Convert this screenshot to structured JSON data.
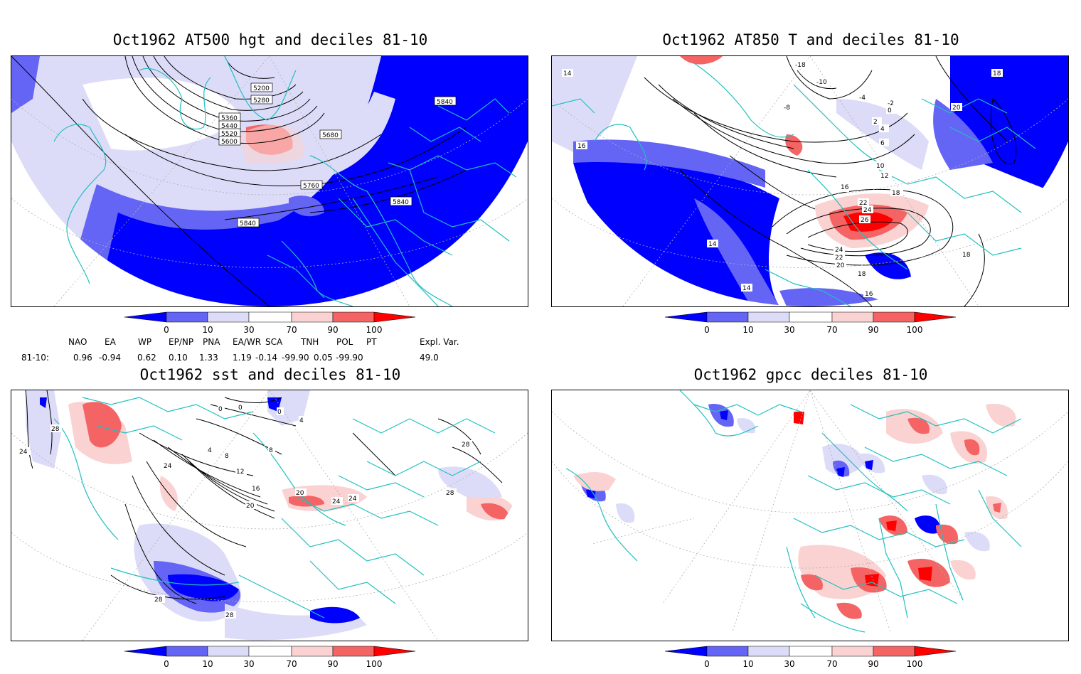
{
  "panels": [
    {
      "id": "tl",
      "title": "Oct1962 AT500 hgt and deciles 81-10",
      "contour_labels": [
        "5200",
        "5280",
        "5360",
        "5440",
        "5520",
        "5600",
        "5680",
        "5760",
        "5840",
        "5840",
        "5840",
        "5840"
      ]
    },
    {
      "id": "tr",
      "title": "Oct1962 AT850 T and deciles 81-10",
      "contour_labels": [
        "14",
        "14",
        "14",
        "16",
        "16",
        "16",
        "18",
        "18",
        "18",
        "20",
        "20",
        "22",
        "22",
        "24",
        "24",
        "26",
        "-18",
        "-10",
        "-8",
        "-4",
        "-2",
        "0",
        "2",
        "4",
        "6",
        "10",
        "12",
        "16",
        "18"
      ]
    },
    {
      "id": "bl",
      "title": "Oct1962 sst and deciles 81-10",
      "contour_labels": [
        "0",
        "0",
        "0",
        "4",
        "4",
        "8",
        "8",
        "12",
        "16",
        "20",
        "20",
        "24",
        "24",
        "24",
        "28",
        "28",
        "28",
        "28",
        "28",
        "24"
      ]
    },
    {
      "id": "br",
      "title": "Oct1962 gpcc deciles 81-10",
      "contour_labels": []
    }
  ],
  "colorbar": {
    "ticks": [
      "0",
      "10",
      "30",
      "70",
      "90",
      "100"
    ],
    "colors": {
      "c0": "#0000ff",
      "c1": "#6464f5",
      "c2": "#dcdcf8",
      "c3": "#ffffff",
      "c4": "#fad2d2",
      "c5": "#f46464",
      "c6": "#ff0000"
    }
  },
  "indices": {
    "headers": [
      "NAO",
      "EA",
      "WP",
      "EP/NP",
      "PNA",
      "EA/WR",
      "SCA",
      "TNH",
      "POL",
      "PT",
      "Expl. Var."
    ],
    "row_label": "81-10:",
    "values": [
      "0.96",
      "-0.94",
      "0.62",
      "0.10",
      "1.33",
      "1.19",
      "-0.14",
      "-99.90",
      "0.05",
      "-99.90",
      "49.0"
    ]
  },
  "map_colors": {
    "coast": "#20c0c0",
    "contour": "#000000",
    "grid": "#b0b0b0"
  }
}
